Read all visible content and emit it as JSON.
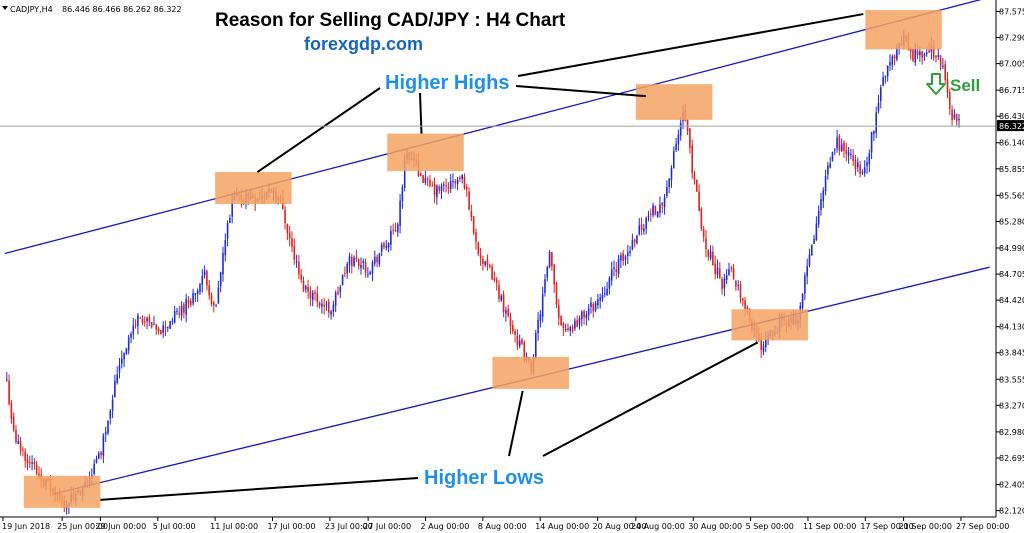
{
  "header": {
    "symbol": "CADJPY,H4",
    "quote": "86.446 86.466 86.262 86.322"
  },
  "title": "Reason for Selling CAD/JPY : H4 Chart",
  "subtitle": "forexgdp.com",
  "annotations": {
    "higher_highs": "Higher Highs",
    "higher_lows": "Higher Lows",
    "sell": "Sell"
  },
  "colors": {
    "bull": "#1f2bd6",
    "bear": "#e0201b",
    "channel": "#1818c8",
    "box": "#f4a262",
    "annotation_text": "#1e90e8",
    "sell_text": "#2e9e3e",
    "price_line": "#a0a0a0"
  },
  "chart_data": {
    "type": "candlestick",
    "symbol": "CADJPY",
    "timeframe": "H4",
    "current_price": 86.322,
    "ylim": [
      82.05,
      87.7
    ],
    "y_ticks": [
      87.575,
      87.29,
      87.005,
      86.715,
      86.43,
      86.14,
      85.855,
      85.565,
      85.28,
      84.99,
      84.705,
      84.42,
      84.13,
      83.845,
      83.555,
      83.27,
      82.98,
      82.695,
      82.405,
      82.12
    ],
    "y_tick_labels": [
      "87.575",
      "87.290",
      "87.005",
      "86.715",
      "86.430",
      "86.140",
      "85.855",
      "85.565",
      "85.280",
      "84.990",
      "84.705",
      "84.420",
      "84.130",
      "83.845",
      "83.555",
      "83.270",
      "82.980",
      "82.695",
      "82.405",
      "82.120"
    ],
    "x_tick_labels": [
      "19 Jun 2018",
      "25 Jun 00:00",
      "29 Jun 00:00",
      "5 Jul 00:00",
      "11 Jul 00:00",
      "17 Jul 00:00",
      "23 Jul 00:00",
      "27 Jul 00:00",
      "2 Aug 00:00",
      "8 Aug 00:00",
      "14 Aug 00:00",
      "20 Aug 00:00",
      "24 Aug 00:00",
      "30 Aug 00:00",
      "5 Sep 00:00",
      "11 Sep 00:00",
      "17 Sep 00:00",
      "21 Sep 00:00",
      "27 Sep 00:00"
    ],
    "price_path": [
      {
        "date": "2018-06-19",
        "close": 83.7
      },
      {
        "date": "2018-06-20",
        "close": 82.9
      },
      {
        "date": "2018-06-22",
        "close": 82.6
      },
      {
        "date": "2018-06-25",
        "close": 82.2
      },
      {
        "date": "2018-06-27",
        "close": 82.3
      },
      {
        "date": "2018-06-29",
        "close": 82.75
      },
      {
        "date": "2018-07-01",
        "close": 83.75
      },
      {
        "date": "2018-07-03",
        "close": 84.25
      },
      {
        "date": "2018-07-05",
        "close": 84.05
      },
      {
        "date": "2018-07-06",
        "close": 84.15
      },
      {
        "date": "2018-07-09",
        "close": 84.5
      },
      {
        "date": "2018-07-10",
        "close": 84.7
      },
      {
        "date": "2018-07-11",
        "close": 84.25
      },
      {
        "date": "2018-07-12",
        "close": 85.05
      },
      {
        "date": "2018-07-13",
        "close": 85.55
      },
      {
        "date": "2018-07-16",
        "close": 85.55
      },
      {
        "date": "2018-07-17",
        "close": 85.65
      },
      {
        "date": "2018-07-18",
        "close": 85.45
      },
      {
        "date": "2018-07-19",
        "close": 85.0
      },
      {
        "date": "2018-07-20",
        "close": 84.6
      },
      {
        "date": "2018-07-23",
        "close": 84.3
      },
      {
        "date": "2018-07-24",
        "close": 84.55
      },
      {
        "date": "2018-07-25",
        "close": 84.85
      },
      {
        "date": "2018-07-26",
        "close": 84.85
      },
      {
        "date": "2018-07-27",
        "close": 84.75
      },
      {
        "date": "2018-07-30",
        "close": 85.2
      },
      {
        "date": "2018-07-31",
        "close": 86.05
      },
      {
        "date": "2018-08-01",
        "close": 85.9
      },
      {
        "date": "2018-08-02",
        "close": 85.7
      },
      {
        "date": "2018-08-03",
        "close": 85.6
      },
      {
        "date": "2018-08-06",
        "close": 85.75
      },
      {
        "date": "2018-08-07",
        "close": 85.2
      },
      {
        "date": "2018-08-08",
        "close": 84.8
      },
      {
        "date": "2018-08-09",
        "close": 84.7
      },
      {
        "date": "2018-08-10",
        "close": 84.4
      },
      {
        "date": "2018-08-13",
        "close": 83.65
      },
      {
        "date": "2018-08-14",
        "close": 84.3
      },
      {
        "date": "2018-08-15",
        "close": 84.9
      },
      {
        "date": "2018-08-16",
        "close": 84.2
      },
      {
        "date": "2018-08-17",
        "close": 84.1
      },
      {
        "date": "2018-08-20",
        "close": 84.4
      },
      {
        "date": "2018-08-21",
        "close": 84.6
      },
      {
        "date": "2018-08-22",
        "close": 84.8
      },
      {
        "date": "2018-08-23",
        "close": 84.9
      },
      {
        "date": "2018-08-24",
        "close": 85.15
      },
      {
        "date": "2018-08-27",
        "close": 85.55
      },
      {
        "date": "2018-08-28",
        "close": 86.0
      },
      {
        "date": "2018-08-29",
        "close": 86.5
      },
      {
        "date": "2018-08-30",
        "close": 85.8
      },
      {
        "date": "2018-08-31",
        "close": 85.1
      },
      {
        "date": "2018-09-02",
        "close": 84.6
      },
      {
        "date": "2018-09-03",
        "close": 84.75
      },
      {
        "date": "2018-09-04",
        "close": 84.5
      },
      {
        "date": "2018-09-05",
        "close": 84.2
      },
      {
        "date": "2018-09-06",
        "close": 83.9
      },
      {
        "date": "2018-09-07",
        "close": 84.1
      },
      {
        "date": "2018-09-10",
        "close": 84.25
      },
      {
        "date": "2018-09-11",
        "close": 84.8
      },
      {
        "date": "2018-09-12",
        "close": 85.3
      },
      {
        "date": "2018-09-13",
        "close": 85.8
      },
      {
        "date": "2018-09-14",
        "close": 86.15
      },
      {
        "date": "2018-09-16",
        "close": 85.9
      },
      {
        "date": "2018-09-17",
        "close": 85.8
      },
      {
        "date": "2018-09-18",
        "close": 86.4
      },
      {
        "date": "2018-09-19",
        "close": 86.9
      },
      {
        "date": "2018-09-20",
        "close": 87.1
      },
      {
        "date": "2018-09-21",
        "close": 87.3
      },
      {
        "date": "2018-09-22",
        "close": 87.1
      },
      {
        "date": "2018-09-24",
        "close": 87.15
      },
      {
        "date": "2018-09-25",
        "close": 87.0
      },
      {
        "date": "2018-09-26",
        "close": 86.45
      },
      {
        "date": "2018-09-27",
        "close": 86.32
      }
    ],
    "channel_lines": [
      {
        "name": "upper",
        "points": [
          {
            "date": "2018-06-19",
            "price": 84.93
          },
          {
            "date": "2018-09-30",
            "price": 87.73
          }
        ]
      },
      {
        "name": "lower",
        "points": [
          {
            "date": "2018-06-24",
            "price": 82.3
          },
          {
            "date": "2018-09-30",
            "price": 84.78
          }
        ]
      }
    ],
    "highlight_zones": [
      {
        "role": "higher-high",
        "from": "2018-07-11",
        "to": "2018-07-19",
        "low": 85.47,
        "high": 85.82
      },
      {
        "role": "higher-high",
        "from": "2018-07-29",
        "to": "2018-08-06",
        "low": 85.83,
        "high": 86.24
      },
      {
        "role": "higher-high",
        "from": "2018-08-24",
        "to": "2018-09-01",
        "low": 86.39,
        "high": 86.78
      },
      {
        "role": "higher-high",
        "from": "2018-09-17",
        "to": "2018-09-25",
        "low": 87.16,
        "high": 87.59
      },
      {
        "role": "higher-low",
        "from": "2018-06-21",
        "to": "2018-06-29",
        "low": 82.15,
        "high": 82.5
      },
      {
        "role": "higher-low",
        "from": "2018-08-09",
        "to": "2018-08-17",
        "low": 83.45,
        "high": 83.8
      },
      {
        "role": "higher-low",
        "from": "2018-09-03",
        "to": "2018-09-11",
        "low": 83.98,
        "high": 84.32
      }
    ],
    "grid": false
  }
}
